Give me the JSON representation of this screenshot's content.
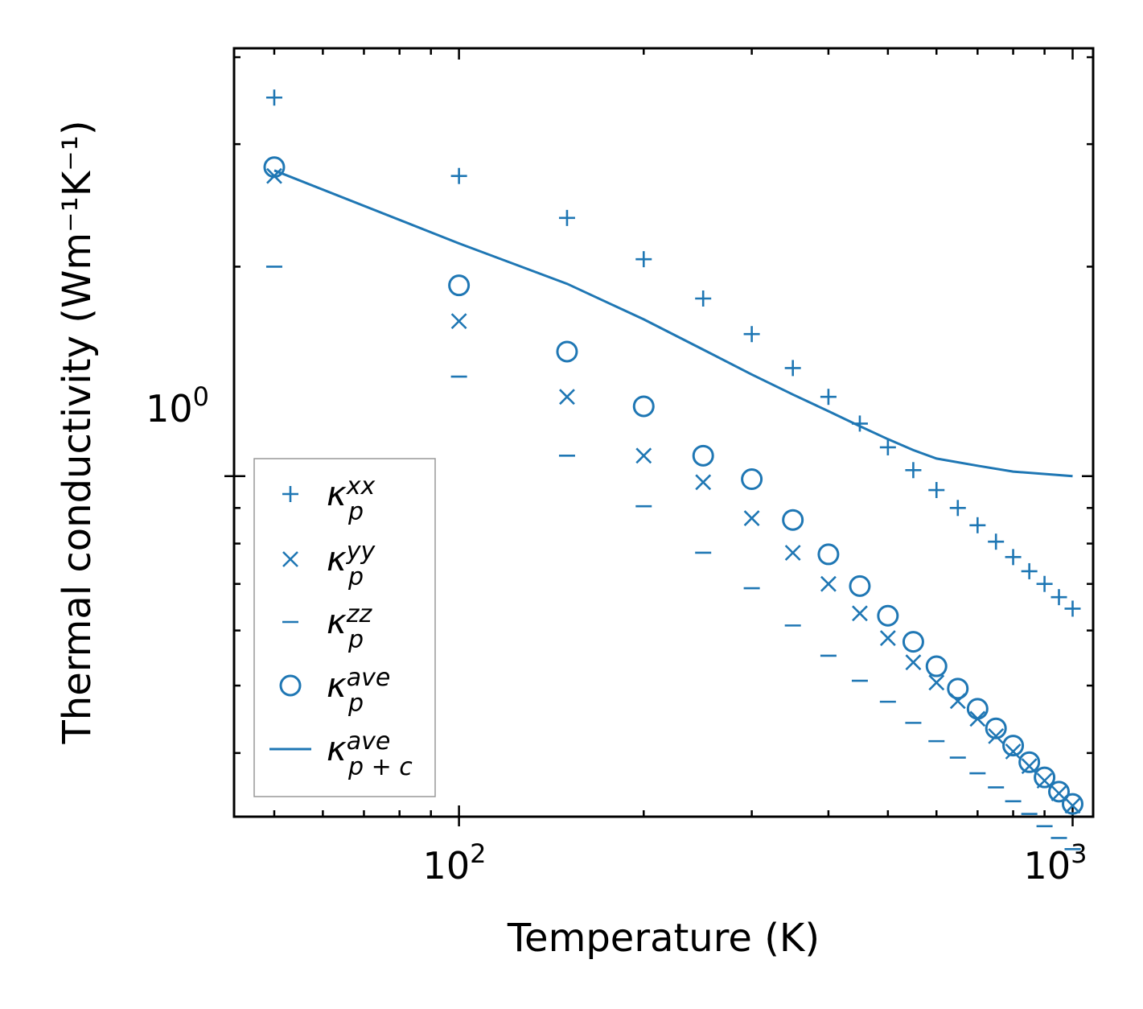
{
  "chart_data": {
    "type": "scatter",
    "title": "",
    "xlabel": "Temperature (K)",
    "ylabel": "Thermal conductivity (Wm⁻¹K⁻¹)",
    "xscale": "log",
    "yscale": "log",
    "xlim": [
      43,
      1080
    ],
    "ylim": [
      0.324,
      4.12
    ],
    "xtick_labels": [
      {
        "value": 100,
        "base": "10",
        "exp": "2"
      },
      {
        "value": 1000,
        "base": "10",
        "exp": "3"
      }
    ],
    "ytick_labels": [
      {
        "value": 1,
        "base": "10",
        "exp": "0"
      }
    ],
    "color": "#1f77b4",
    "x": [
      50,
      100,
      150,
      200,
      250,
      300,
      350,
      400,
      450,
      500,
      550,
      600,
      650,
      700,
      750,
      800,
      850,
      900,
      950,
      1000
    ],
    "series": [
      {
        "name": "kappa_p_xx",
        "label_base": "κ",
        "label_sub": "p",
        "label_sup": "xx",
        "marker": "plus",
        "values": [
          3.5,
          2.7,
          2.35,
          2.05,
          1.8,
          1.6,
          1.43,
          1.3,
          1.19,
          1.1,
          1.02,
          0.955,
          0.9,
          0.85,
          0.805,
          0.765,
          0.73,
          0.7,
          0.67,
          0.645
        ]
      },
      {
        "name": "kappa_p_yy",
        "label_base": "κ",
        "label_sub": "p",
        "label_sup": "yy",
        "marker": "x",
        "values": [
          2.7,
          1.67,
          1.3,
          1.07,
          0.98,
          0.87,
          0.776,
          0.7,
          0.635,
          0.585,
          0.54,
          0.505,
          0.475,
          0.448,
          0.423,
          0.402,
          0.383,
          0.365,
          0.35,
          0.336
        ]
      },
      {
        "name": "kappa_p_zz",
        "label_base": "κ",
        "label_sub": "p",
        "label_sup": "zz",
        "marker": "hline",
        "values": [
          2.0,
          1.39,
          1.07,
          0.905,
          0.776,
          0.69,
          0.61,
          0.552,
          0.508,
          0.474,
          0.442,
          0.416,
          0.394,
          0.374,
          0.357,
          0.341,
          0.327,
          0.314,
          0.302,
          0.291
        ]
      },
      {
        "name": "kappa_p_ave",
        "label_base": "κ",
        "label_sub": "p",
        "label_sup": "ave",
        "marker": "circle",
        "values": [
          2.78,
          1.88,
          1.51,
          1.26,
          1.07,
          0.99,
          0.865,
          0.772,
          0.695,
          0.63,
          0.578,
          0.533,
          0.495,
          0.463,
          0.434,
          0.41,
          0.388,
          0.369,
          0.352,
          0.338
        ]
      },
      {
        "name": "kappa_pc_ave",
        "label_base": "κ",
        "label_sub": "p + c",
        "label_sup": "ave",
        "marker": "line",
        "values": [
          2.75,
          2.16,
          1.89,
          1.68,
          1.52,
          1.4,
          1.31,
          1.24,
          1.18,
          1.13,
          1.09,
          1.06,
          1.035,
          1.015,
          1.0
        ]
      }
    ],
    "line_x": [
      50,
      100,
      150,
      200,
      250,
      300,
      350,
      400,
      450,
      500,
      550,
      600,
      700,
      800,
      1000
    ],
    "legend_position": "lower-left"
  }
}
